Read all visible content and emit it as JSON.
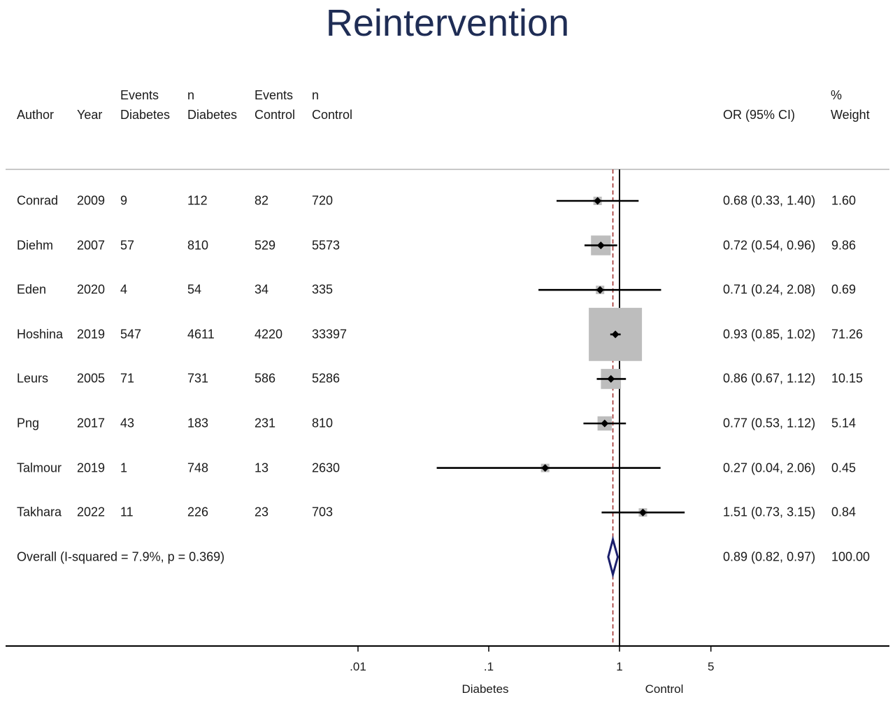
{
  "title": "Reintervention",
  "headers": {
    "author": [
      "",
      "Author"
    ],
    "year": [
      "",
      "Year"
    ],
    "events_diabetes": [
      "Events",
      "Diabetes"
    ],
    "n_diabetes": [
      "n",
      "Diabetes"
    ],
    "events_control": [
      "Events",
      "Control"
    ],
    "n_control": [
      "n",
      "Control"
    ],
    "or_ci": [
      "",
      "OR (95% CI)"
    ],
    "weight": [
      "%",
      "Weight"
    ]
  },
  "studies": [
    {
      "author": "Conrad",
      "year": "2009",
      "events_diabetes": "9",
      "n_diabetes": "112",
      "events_control": "82",
      "n_control": "720",
      "or_ci": "0.68 (0.33, 1.40)",
      "weight": "1.60"
    },
    {
      "author": "Diehm",
      "year": "2007",
      "events_diabetes": "57",
      "n_diabetes": "810",
      "events_control": "529",
      "n_control": "5573",
      "or_ci": "0.72 (0.54, 0.96)",
      "weight": "9.86"
    },
    {
      "author": "Eden",
      "year": "2020",
      "events_diabetes": "4",
      "n_diabetes": "54",
      "events_control": "34",
      "n_control": "335",
      "or_ci": "0.71 (0.24, 2.08)",
      "weight": "0.69"
    },
    {
      "author": "Hoshina",
      "year": "2019",
      "events_diabetes": "547",
      "n_diabetes": "4611",
      "events_control": "4220",
      "n_control": "33397",
      "or_ci": "0.93 (0.85, 1.02)",
      "weight": "71.26"
    },
    {
      "author": "Leurs",
      "year": "2005",
      "events_diabetes": "71",
      "n_diabetes": "731",
      "events_control": "586",
      "n_control": "5286",
      "or_ci": "0.86 (0.67, 1.12)",
      "weight": "10.15"
    },
    {
      "author": "Png",
      "year": "2017",
      "events_diabetes": "43",
      "n_diabetes": "183",
      "events_control": "231",
      "n_control": "810",
      "or_ci": "0.77 (0.53, 1.12)",
      "weight": "5.14"
    },
    {
      "author": "Talmour",
      "year": "2019",
      "events_diabetes": "1",
      "n_diabetes": "748",
      "events_control": "13",
      "n_control": "2630",
      "or_ci": "0.27 (0.04, 2.06)",
      "weight": "0.45"
    },
    {
      "author": "Takhara",
      "year": "2022",
      "events_diabetes": "11",
      "n_diabetes": "226",
      "events_control": "23",
      "n_control": "703",
      "or_ci": "1.51 (0.73, 3.15)",
      "weight": "0.84"
    }
  ],
  "overall": {
    "label": "Overall  (I-squared = 7.9%, p = 0.369)",
    "or_ci": "0.89 (0.82, 0.97)",
    "weight": "100.00"
  },
  "axis": {
    "ticks": [
      ".01",
      ".1",
      "1",
      "5"
    ],
    "left_label": "Diabetes",
    "right_label": "Control"
  },
  "chart_data": {
    "type": "forest",
    "title": "Reintervention",
    "scale": "log",
    "xticks": [
      0.01,
      0.1,
      1,
      5
    ],
    "reference_line": 1,
    "pooled_line": 0.89,
    "points": [
      {
        "study": "Conrad",
        "or": 0.68,
        "lo": 0.33,
        "hi": 1.4,
        "weight": 1.6
      },
      {
        "study": "Diehm",
        "or": 0.72,
        "lo": 0.54,
        "hi": 0.96,
        "weight": 9.86
      },
      {
        "study": "Eden",
        "or": 0.71,
        "lo": 0.24,
        "hi": 2.08,
        "weight": 0.69
      },
      {
        "study": "Hoshina",
        "or": 0.93,
        "lo": 0.85,
        "hi": 1.02,
        "weight": 71.26
      },
      {
        "study": "Leurs",
        "or": 0.86,
        "lo": 0.67,
        "hi": 1.12,
        "weight": 10.15
      },
      {
        "study": "Png",
        "or": 0.77,
        "lo": 0.53,
        "hi": 1.12,
        "weight": 5.14
      },
      {
        "study": "Talmour",
        "or": 0.27,
        "lo": 0.04,
        "hi": 2.06,
        "weight": 0.45
      },
      {
        "study": "Takhara",
        "or": 1.51,
        "lo": 0.73,
        "hi": 3.15,
        "weight": 0.84
      }
    ],
    "overall": {
      "or": 0.89,
      "lo": 0.82,
      "hi": 0.97
    },
    "colors": {
      "marker": "#000000",
      "weight_box": "#bdbdbd",
      "diamond": "#1b1f6b",
      "pooled_line": "#a0302e"
    }
  }
}
